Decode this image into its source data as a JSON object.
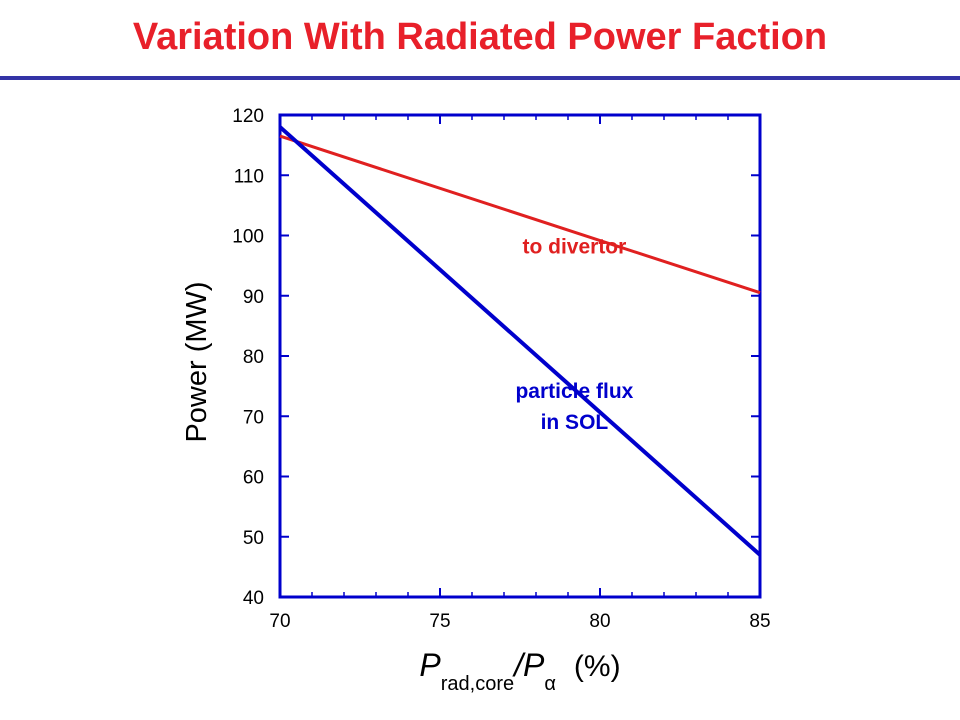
{
  "slide": {
    "title": "Variation With Radiated Power Faction"
  },
  "chart_data": {
    "type": "line",
    "title": "",
    "ylabel": "Power (MW)",
    "xlabel": {
      "main": "P",
      "sub": "rad,core",
      "slash": "/P",
      "sub2": "α",
      "unit": "(%)"
    },
    "xlim": [
      70,
      85
    ],
    "ylim": [
      40,
      120
    ],
    "xticks": [
      70,
      75,
      80,
      85
    ],
    "yticks": [
      40,
      50,
      60,
      70,
      80,
      90,
      100,
      110,
      120
    ],
    "grid": false,
    "frame_color": "#0000cc",
    "series": [
      {
        "name": "to divertor",
        "color": "#e02020",
        "x": [
          70,
          85
        ],
        "y": [
          116.5,
          90.5
        ],
        "label_lines": [
          "to divertor"
        ],
        "label_at": {
          "x": 79.2,
          "y": 97
        }
      },
      {
        "name": "particle flux in SOL",
        "color": "#0000cc",
        "x": [
          70,
          85
        ],
        "y": [
          118,
          47
        ],
        "label_lines": [
          "particle flux",
          "in SOL"
        ],
        "label_at": {
          "x": 79.2,
          "y": 73
        }
      }
    ]
  }
}
